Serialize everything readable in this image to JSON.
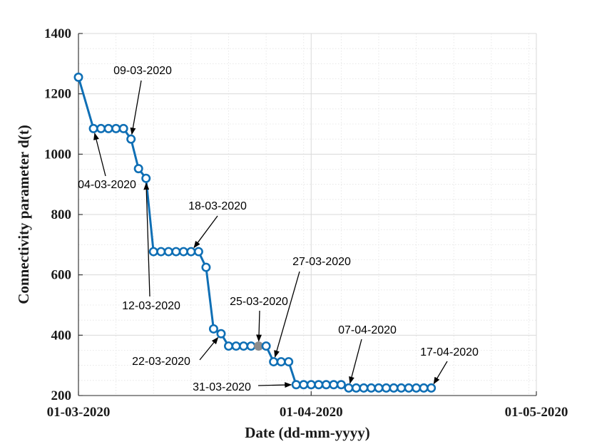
{
  "chart_data": {
    "type": "line",
    "xlabel": "Date (dd-mm-yyyy)",
    "ylabel": "Connectivity parameter d(t)",
    "xlim": [
      "2020-03-01",
      "2020-05-01"
    ],
    "ylim": [
      200,
      1400
    ],
    "grid": true,
    "x_ticks": [
      "01-03-2020",
      "01-04-2020",
      "01-05-2020"
    ],
    "y_ticks": [
      200,
      400,
      600,
      800,
      1000,
      1200,
      1400
    ],
    "colors": {
      "line": "#0f6fb5",
      "marker_face": "#ffffff",
      "highlight_face": "#8c8c8c"
    },
    "highlight_date": "2020-03-25",
    "series": [
      {
        "x": [
          "2020-03-01",
          "2020-03-03",
          "2020-03-04",
          "2020-03-05",
          "2020-03-06",
          "2020-03-07",
          "2020-03-08",
          "2020-03-09",
          "2020-03-10",
          "2020-03-11",
          "2020-03-12",
          "2020-03-13",
          "2020-03-14",
          "2020-03-15",
          "2020-03-16",
          "2020-03-17",
          "2020-03-18",
          "2020-03-19",
          "2020-03-20",
          "2020-03-21",
          "2020-03-22",
          "2020-03-23",
          "2020-03-24",
          "2020-03-25",
          "2020-03-26",
          "2020-03-27",
          "2020-03-28",
          "2020-03-29",
          "2020-03-30",
          "2020-03-31",
          "2020-04-01",
          "2020-04-02",
          "2020-04-03",
          "2020-04-04",
          "2020-04-05",
          "2020-04-06",
          "2020-04-07",
          "2020-04-08",
          "2020-04-09",
          "2020-04-10",
          "2020-04-11",
          "2020-04-12",
          "2020-04-13",
          "2020-04-14",
          "2020-04-15",
          "2020-04-16",
          "2020-04-17"
        ],
        "y": [
          1255,
          1085,
          1085,
          1085,
          1085,
          1085,
          1050,
          952,
          920,
          677,
          677,
          677,
          677,
          677,
          677,
          677,
          625,
          421,
          405,
          364,
          364,
          364,
          364,
          364,
          364,
          312,
          312,
          312,
          236,
          236,
          236,
          236,
          236,
          236,
          236,
          225,
          225,
          225,
          225,
          225,
          225,
          225,
          225,
          225,
          225,
          225,
          225
        ]
      }
    ],
    "annotations": [
      {
        "label": "04-03-2020",
        "date": "2020-03-03"
      },
      {
        "label": "09-03-2020",
        "date": "2020-03-08"
      },
      {
        "label": "12-03-2020",
        "date": "2020-03-10"
      },
      {
        "label": "18-03-2020",
        "date": "2020-03-16"
      },
      {
        "label": "22-03-2020",
        "date": "2020-03-20"
      },
      {
        "label": "25-03-2020",
        "date": "2020-03-25"
      },
      {
        "label": "27-03-2020",
        "date": "2020-03-27"
      },
      {
        "label": "31-03-2020",
        "date": "2020-03-30"
      },
      {
        "label": "07-04-2020",
        "date": "2020-04-06"
      },
      {
        "label": "17-04-2020",
        "date": "2020-04-17"
      }
    ]
  }
}
